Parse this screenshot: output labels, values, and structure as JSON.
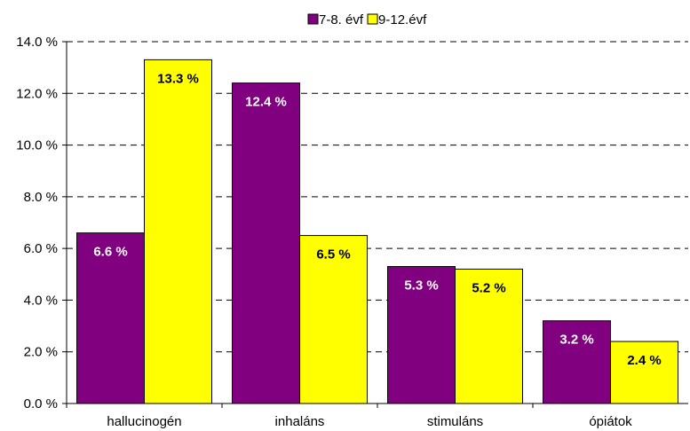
{
  "chart_data": {
    "type": "bar",
    "title": "",
    "xlabel": "",
    "ylabel": "",
    "categories": [
      "hallucinogén",
      "inhaláns",
      "stimuláns",
      "ópiátok"
    ],
    "series": [
      {
        "name": "7-8. évf",
        "values": [
          6.6,
          12.4,
          5.3,
          3.2
        ],
        "labels": [
          "6.6 %",
          "12.4 %",
          "5.3 %",
          "3.2 %"
        ],
        "color": "#800080",
        "label_color": "#ffffff"
      },
      {
        "name": "9-12.évf",
        "values": [
          13.3,
          6.5,
          5.2,
          2.4
        ],
        "labels": [
          "13.3 %",
          "6.5 %",
          "5.2 %",
          "2.4 %"
        ],
        "color": "#ffff00",
        "label_color": "#000000"
      }
    ],
    "ylim": [
      0,
      14
    ],
    "yticks": [
      0,
      2,
      4,
      6,
      8,
      10,
      12,
      14
    ],
    "ytick_labels": [
      "0.0 %",
      "2.0 %",
      "4.0 %",
      "6.0 %",
      "8.0 %",
      "10.0 %",
      "12.0 %",
      "14.0 %"
    ],
    "grid": true,
    "grid_style": "dashed",
    "legend_position": "top-center"
  }
}
